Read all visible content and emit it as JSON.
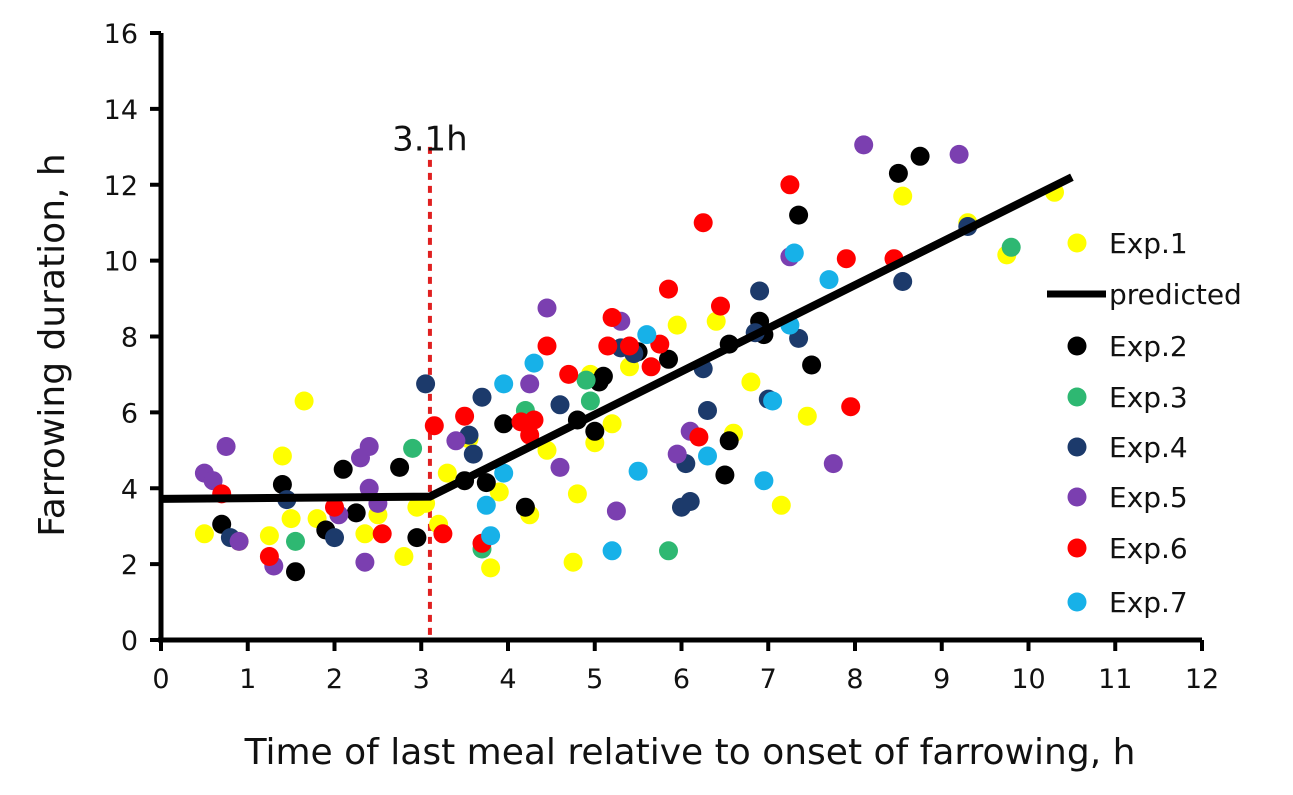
{
  "chart_data": {
    "type": "scatter",
    "title": "",
    "xlabel": "Time of last meal relative to onset of farrowing, h",
    "ylabel": "Farrowing duration, h",
    "xlim": [
      0,
      12
    ],
    "ylim": [
      0,
      16
    ],
    "xticks": [
      "0",
      "1",
      "2",
      "3",
      "4",
      "5",
      "6",
      "7",
      "8",
      "9",
      "10",
      "11",
      "12"
    ],
    "yticks": [
      "0",
      "2",
      "4",
      "6",
      "8",
      "10",
      "12",
      "14",
      "16"
    ],
    "grid": false,
    "legend_position": "right",
    "annotation": {
      "label": "3.1h",
      "x": 3.1,
      "color": "#e02020",
      "style": "dotted-vertical-line"
    },
    "predicted": {
      "name": "predicted",
      "color": "#000000",
      "points": [
        [
          0,
          3.72
        ],
        [
          3.1,
          3.78
        ],
        [
          10.5,
          12.2
        ]
      ]
    },
    "series": [
      {
        "name": "Exp.1",
        "color": "#ffff00",
        "points": [
          [
            0.5,
            2.8
          ],
          [
            0.9,
            2.6
          ],
          [
            1.25,
            2.75
          ],
          [
            1.4,
            4.85
          ],
          [
            1.5,
            3.2
          ],
          [
            1.65,
            6.3
          ],
          [
            1.8,
            3.2
          ],
          [
            2.35,
            2.8
          ],
          [
            2.5,
            3.3
          ],
          [
            2.8,
            2.2
          ],
          [
            2.95,
            3.5
          ],
          [
            3.05,
            3.6
          ],
          [
            3.2,
            3.05
          ],
          [
            3.3,
            4.4
          ],
          [
            3.55,
            5.3
          ],
          [
            3.8,
            1.9
          ],
          [
            3.9,
            3.9
          ],
          [
            4.25,
            3.3
          ],
          [
            4.45,
            5.0
          ],
          [
            4.75,
            2.05
          ],
          [
            4.8,
            3.85
          ],
          [
            4.95,
            7.0
          ],
          [
            5.0,
            5.2
          ],
          [
            5.2,
            5.7
          ],
          [
            5.4,
            7.2
          ],
          [
            5.95,
            8.3
          ],
          [
            6.4,
            8.4
          ],
          [
            6.6,
            5.45
          ],
          [
            6.8,
            6.8
          ],
          [
            7.15,
            3.55
          ],
          [
            7.45,
            5.9
          ],
          [
            8.55,
            11.7
          ],
          [
            9.3,
            11.0
          ],
          [
            9.75,
            10.15
          ],
          [
            10.3,
            11.8
          ]
        ]
      },
      {
        "name": "Exp.2",
        "color": "#000000",
        "points": [
          [
            0.7,
            3.05
          ],
          [
            1.4,
            4.1
          ],
          [
            1.55,
            1.8
          ],
          [
            1.9,
            2.9
          ],
          [
            2.1,
            4.5
          ],
          [
            2.25,
            3.35
          ],
          [
            2.75,
            4.55
          ],
          [
            2.95,
            2.7
          ],
          [
            3.5,
            4.2
          ],
          [
            3.75,
            4.15
          ],
          [
            3.95,
            5.7
          ],
          [
            4.2,
            3.5
          ],
          [
            4.8,
            5.8
          ],
          [
            5.0,
            5.5
          ],
          [
            5.05,
            6.8
          ],
          [
            5.1,
            6.95
          ],
          [
            5.5,
            7.6
          ],
          [
            5.85,
            7.4
          ],
          [
            6.5,
            4.35
          ],
          [
            6.55,
            7.8
          ],
          [
            6.55,
            5.25
          ],
          [
            6.9,
            8.4
          ],
          [
            6.95,
            8.05
          ],
          [
            7.35,
            11.2
          ],
          [
            7.5,
            7.25
          ],
          [
            8.5,
            12.3
          ],
          [
            8.75,
            12.75
          ]
        ]
      },
      {
        "name": "Exp.3",
        "color": "#2eb872",
        "points": [
          [
            1.55,
            2.6
          ],
          [
            2.9,
            5.05
          ],
          [
            3.7,
            2.4
          ],
          [
            4.2,
            6.05
          ],
          [
            4.9,
            6.85
          ],
          [
            4.95,
            6.3
          ],
          [
            5.85,
            2.35
          ],
          [
            9.8,
            10.35
          ]
        ]
      },
      {
        "name": "Exp.4",
        "color": "#1c3a6b",
        "points": [
          [
            0.8,
            2.7
          ],
          [
            1.45,
            3.7
          ],
          [
            2.0,
            2.7
          ],
          [
            3.05,
            6.75
          ],
          [
            3.55,
            5.4
          ],
          [
            3.6,
            4.9
          ],
          [
            3.7,
            6.4
          ],
          [
            4.6,
            6.2
          ],
          [
            5.3,
            7.7
          ],
          [
            5.45,
            7.55
          ],
          [
            6.0,
            3.5
          ],
          [
            6.05,
            4.65
          ],
          [
            6.1,
            3.65
          ],
          [
            6.25,
            7.15
          ],
          [
            6.3,
            6.05
          ],
          [
            6.85,
            8.1
          ],
          [
            6.9,
            9.2
          ],
          [
            7.0,
            6.35
          ],
          [
            7.35,
            7.95
          ],
          [
            8.55,
            9.45
          ],
          [
            9.3,
            10.9
          ]
        ]
      },
      {
        "name": "Exp.5",
        "color": "#7b3fb0",
        "points": [
          [
            0.5,
            4.4
          ],
          [
            0.6,
            4.2
          ],
          [
            0.75,
            5.1
          ],
          [
            0.9,
            2.6
          ],
          [
            1.3,
            1.95
          ],
          [
            2.05,
            3.3
          ],
          [
            2.3,
            4.8
          ],
          [
            2.35,
            2.05
          ],
          [
            2.4,
            4.0
          ],
          [
            2.4,
            5.1
          ],
          [
            2.5,
            3.6
          ],
          [
            3.4,
            5.25
          ],
          [
            4.25,
            6.75
          ],
          [
            4.45,
            8.75
          ],
          [
            4.6,
            4.55
          ],
          [
            5.25,
            3.4
          ],
          [
            5.3,
            8.4
          ],
          [
            5.95,
            4.9
          ],
          [
            6.1,
            5.5
          ],
          [
            7.25,
            10.1
          ],
          [
            7.75,
            4.65
          ],
          [
            8.1,
            13.05
          ],
          [
            9.2,
            12.8
          ]
        ]
      },
      {
        "name": "Exp.6",
        "color": "#ff0000",
        "points": [
          [
            0.7,
            3.85
          ],
          [
            1.25,
            2.2
          ],
          [
            2.0,
            3.5
          ],
          [
            2.55,
            2.8
          ],
          [
            3.15,
            5.65
          ],
          [
            3.25,
            2.8
          ],
          [
            3.5,
            5.9
          ],
          [
            3.7,
            2.55
          ],
          [
            4.15,
            5.75
          ],
          [
            4.25,
            5.4
          ],
          [
            4.3,
            5.8
          ],
          [
            4.45,
            7.75
          ],
          [
            4.7,
            7.0
          ],
          [
            5.15,
            7.75
          ],
          [
            5.2,
            8.5
          ],
          [
            5.4,
            7.75
          ],
          [
            5.65,
            7.2
          ],
          [
            5.75,
            7.8
          ],
          [
            5.85,
            9.25
          ],
          [
            6.2,
            5.35
          ],
          [
            6.25,
            11.0
          ],
          [
            6.45,
            8.8
          ],
          [
            7.25,
            12.0
          ],
          [
            7.9,
            10.05
          ],
          [
            7.95,
            6.15
          ],
          [
            8.45,
            10.05
          ]
        ]
      },
      {
        "name": "Exp.7",
        "color": "#17b1e8",
        "points": [
          [
            3.75,
            3.55
          ],
          [
            3.8,
            2.75
          ],
          [
            3.95,
            4.4
          ],
          [
            3.95,
            6.75
          ],
          [
            4.3,
            7.3
          ],
          [
            5.2,
            2.35
          ],
          [
            5.5,
            4.45
          ],
          [
            5.6,
            8.05
          ],
          [
            6.3,
            4.85
          ],
          [
            6.95,
            4.2
          ],
          [
            7.05,
            6.3
          ],
          [
            7.25,
            8.3
          ],
          [
            7.3,
            10.2
          ],
          [
            7.7,
            9.5
          ]
        ]
      }
    ],
    "legend_order": [
      "Exp.1",
      "predicted",
      "Exp.2",
      "Exp.3",
      "Exp.4",
      "Exp.5",
      "Exp.6",
      "Exp.7"
    ]
  }
}
